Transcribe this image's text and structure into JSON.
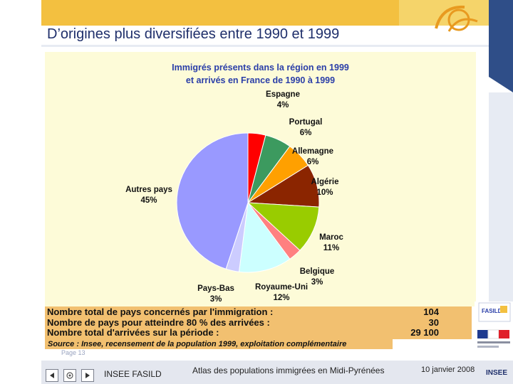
{
  "slide": {
    "title": "D’origines plus diversifiées entre 1990 et 1999",
    "page_label": "Page 13"
  },
  "chart_data": {
    "type": "pie",
    "title": "Immigrés présents dans la région en 1999",
    "subtitle": "et arrivés en France de 1990 à 1999",
    "slices": [
      {
        "label": "Espagne",
        "value": 4,
        "display": "4%",
        "color": "#ff0000"
      },
      {
        "label": "Portugal",
        "value": 6,
        "display": "6%",
        "color": "#3c9a5f"
      },
      {
        "label": "Allemagne",
        "value": 6,
        "display": "6%",
        "color": "#ffa000"
      },
      {
        "label": "Algérie",
        "value": 10,
        "display": "10%",
        "color": "#8b2500"
      },
      {
        "label": "Maroc",
        "value": 11,
        "display": "11%",
        "color": "#99cc00"
      },
      {
        "label": "Belgique",
        "value": 3,
        "display": "3%",
        "color": "#ff8080"
      },
      {
        "label": "Royaume-Uni",
        "value": 12,
        "display": "12%",
        "color": "#ccffff"
      },
      {
        "label": "Pays-Bas",
        "value": 3,
        "display": "3%",
        "color": "#ccccff"
      },
      {
        "label": "Autres pays",
        "value": 45,
        "display": "45%",
        "color": "#9999ff"
      }
    ]
  },
  "summary": {
    "rows": [
      {
        "label": "Nombre total de pays concernés par l'immigration :",
        "value": "104"
      },
      {
        "label": "Nombre de pays pour atteindre 80 % des arrivées :",
        "value": "30"
      },
      {
        "label": "Nombre total d'arrivées sur la période :",
        "value": "29 100"
      }
    ],
    "source": "Source : Insee, recensement de la population 1999, exploitation complémentaire"
  },
  "footer": {
    "left_text": "INSEE FASILD",
    "center_text": "Atlas des populations immigrées en Midi-Pyrénées",
    "date": "10 janvier 2008",
    "prev_icon": "triangle-left-icon",
    "home_icon": "home-icon",
    "next_icon": "triangle-right-icon"
  },
  "logos": {
    "fasild": "FASILD",
    "insee": "INSEE"
  }
}
